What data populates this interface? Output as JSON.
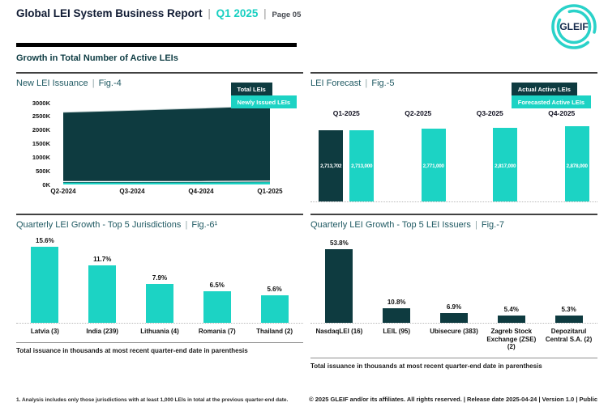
{
  "ui": {
    "pipe": "|"
  },
  "header": {
    "title": "Global LEI System Business Report",
    "period": "Q1 2025",
    "page": "Page 05",
    "logo_text": "GLEIF"
  },
  "section": {
    "heading": "Growth in Total Number of Active LEIs"
  },
  "panels": {
    "fig4": {
      "title": "New LEI Issuance",
      "fig": "Fig.-4",
      "legend": [
        "Total LEIs",
        "Newly Issued LEIs"
      ]
    },
    "fig5": {
      "title": "LEI Forecast",
      "fig": "Fig.-5",
      "legend": [
        "Actual Active LEIs",
        "Forecasted Active LEIs"
      ]
    },
    "fig6": {
      "title": "Quarterly LEI Growth - Top 5 Jurisdictions",
      "fig": "Fig.-6¹",
      "note": "Total issuance in thousands at most recent quarter-end date in parenthesis"
    },
    "fig7": {
      "title": "Quarterly LEI Growth - Top 5 LEI Issuers",
      "fig": "Fig.-7",
      "note": "Total issuance in thousands at most recent quarter-end date in parenthesis"
    }
  },
  "footer": {
    "footnote": "1. Analysis includes only those jurisdictions with at least 1,000 LEIs in total at the previous quarter-end date.",
    "copyright": "© 2025 GLEIF and/or its affiliates. All rights reserved. | Release date 2025-04-24 | Version 1.0 | Public"
  },
  "colors": {
    "teal": "#1CD3C4",
    "dark": "#0E3B40",
    "logo_teal": "#2AD2C9",
    "navy": "#13294B"
  },
  "chart_data": [
    {
      "id": "fig4",
      "type": "area",
      "title": "New LEI Issuance | Fig.-4",
      "x": [
        "Q2-2024",
        "Q3-2024",
        "Q4-2024",
        "Q1-2025"
      ],
      "series": [
        {
          "name": "Total LEIs",
          "values": [
            2650,
            2720,
            2800,
            2890
          ],
          "unit": "K (thousand LEIs)",
          "color": "#0E3B40",
          "estimated": true
        },
        {
          "name": "Newly Issued LEIs",
          "values": [
            70,
            70,
            75,
            85
          ],
          "unit": "K (thousand LEIs)",
          "color": "#1CD3C4",
          "estimated": true
        }
      ],
      "ylim": [
        0,
        3000
      ],
      "yticks": [
        "0K",
        "500K",
        "1000K",
        "1500K",
        "2000K",
        "2500K",
        "3000K"
      ],
      "legend_position": "top-right",
      "grid": false
    },
    {
      "id": "fig5",
      "type": "bar",
      "title": "LEI Forecast | Fig.-5",
      "categories": [
        "Q1-2025",
        "Q2-2025",
        "Q3-2025",
        "Q4-2025"
      ],
      "series": [
        {
          "name": "Actual Active LEIs",
          "values": [
            2713702,
            null,
            null,
            null
          ],
          "labels": [
            "2,713,702",
            null,
            null,
            null
          ],
          "color": "#0E3B40"
        },
        {
          "name": "Forecasted Active LEIs",
          "values": [
            2713000,
            2771000,
            2817000,
            2878000
          ],
          "labels": [
            "2,713,000",
            "2,771,000",
            "2,817,000",
            "2,878,000"
          ],
          "color": "#1CD3C4"
        }
      ],
      "ylim": [
        0,
        3000000
      ],
      "legend_position": "top-right",
      "grid": false
    },
    {
      "id": "fig6",
      "type": "bar",
      "title": "Quarterly LEI Growth - Top 5 Jurisdictions | Fig.-6¹",
      "categories": [
        "Latvia (3)",
        "India (239)",
        "Lithuania (4)",
        "Romania (7)",
        "Thailand (2)"
      ],
      "values": [
        15.6,
        11.7,
        7.9,
        6.5,
        5.6
      ],
      "labels": [
        "15.6%",
        "11.7%",
        "7.9%",
        "6.5%",
        "5.6%"
      ],
      "bar_color": "#1CD3C4",
      "ylim": [
        0,
        16.5
      ],
      "grid": false
    },
    {
      "id": "fig7",
      "type": "bar",
      "title": "Quarterly LEI Growth - Top 5 LEI Issuers | Fig.-7",
      "categories": [
        "NasdaqLEI (16)",
        "LEIL (95)",
        "Ubisecure (383)",
        "Zagreb Stock Exchange (ZSE) (2)",
        "Depozitarul Central S.A. (2)"
      ],
      "values": [
        53.8,
        10.8,
        6.9,
        5.4,
        5.3
      ],
      "labels": [
        "53.8%",
        "10.8%",
        "6.9%",
        "5.4%",
        "5.3%"
      ],
      "bar_color": "#0E3B40",
      "ylim": [
        0,
        59
      ],
      "grid": false
    }
  ]
}
